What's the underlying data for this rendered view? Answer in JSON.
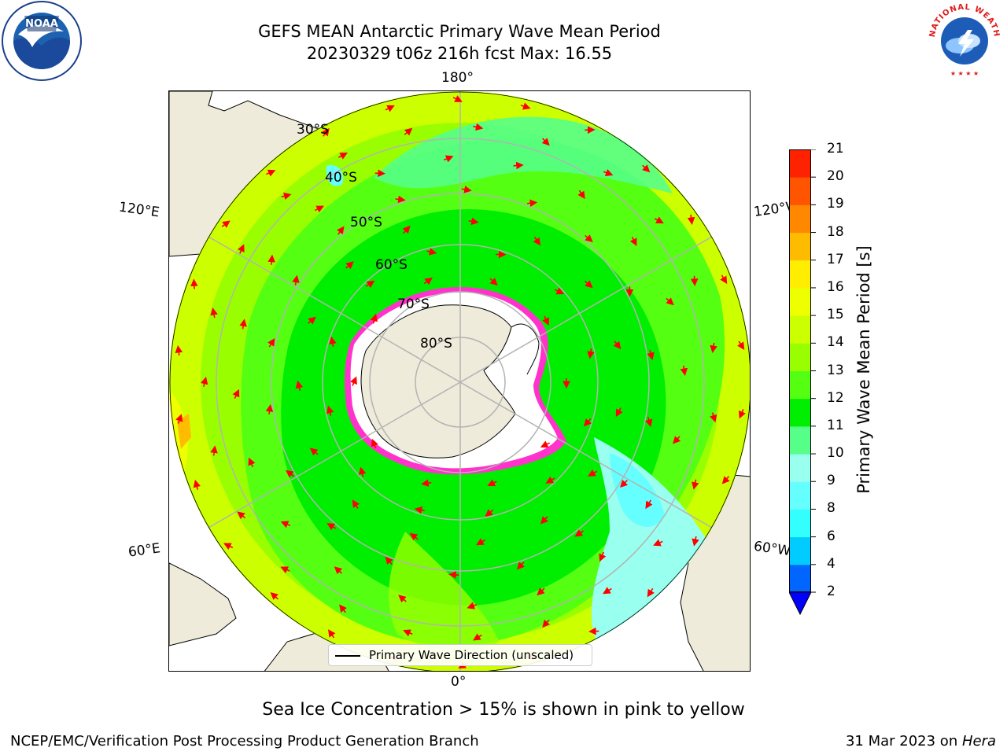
{
  "header": {
    "title_line_1": "GEFS MEAN Antarctic Primary Wave Mean Period",
    "title_line_2": "20230329 t06z 216h fcst   Max: 16.55"
  },
  "logos": {
    "left": {
      "icon": "noaa-logo",
      "text": "NOAA",
      "ring_text": "NATIONAL OCEANIC AND ATMOSPHERIC ADMINISTRATION · U.S. DEPARTMENT OF COMMERCE"
    },
    "right": {
      "icon": "nws-logo",
      "ring_text": "NATIONAL WEATHER SERVICE"
    }
  },
  "map": {
    "projection": "south-polar-stereographic",
    "lon_labels": {
      "top": "180°",
      "bottom": "0°",
      "upper_left": "120°E",
      "upper_right": "120°W",
      "lower_left": "60°E",
      "lower_right": "60°W"
    },
    "lat_labels": [
      "30°S",
      "40°S",
      "50°S",
      "60°S",
      "70°S",
      "80°S"
    ],
    "legend": "Primary Wave Direction (unscaled)",
    "colors": {
      "land": "#eeebda",
      "ice_pink": "#ff33cc",
      "ice_yellow": "#ffcc33",
      "arrow": "#ff0000",
      "grid": "#b3b3b3"
    }
  },
  "colorbar": {
    "label": "Primary Wave Mean Period [s]",
    "ticks": [
      "2",
      "4",
      "6",
      "8",
      "9",
      "10",
      "11",
      "12",
      "13",
      "14",
      "15",
      "16",
      "17",
      "18",
      "19",
      "20",
      "21"
    ],
    "colors": [
      "#0066ff",
      "#00ccff",
      "#33ffff",
      "#66ffff",
      "#99ffee",
      "#55ff88",
      "#00ee00",
      "#55ff11",
      "#99ff00",
      "#ccff00",
      "#eeff00",
      "#ffee00",
      "#ffbb00",
      "#ff8800",
      "#ff5500",
      "#ff2200"
    ],
    "under_color": "#0000ff",
    "over_color": "#ff0000"
  },
  "notes": {
    "sea_ice": "Sea Ice Concentration > 15% is shown in pink to yellow"
  },
  "footer": {
    "left": "NCEP/EMC/Verification Post Processing Product Generation Branch",
    "right_date": "31 Mar 2023 on ",
    "right_host": "Hera"
  }
}
